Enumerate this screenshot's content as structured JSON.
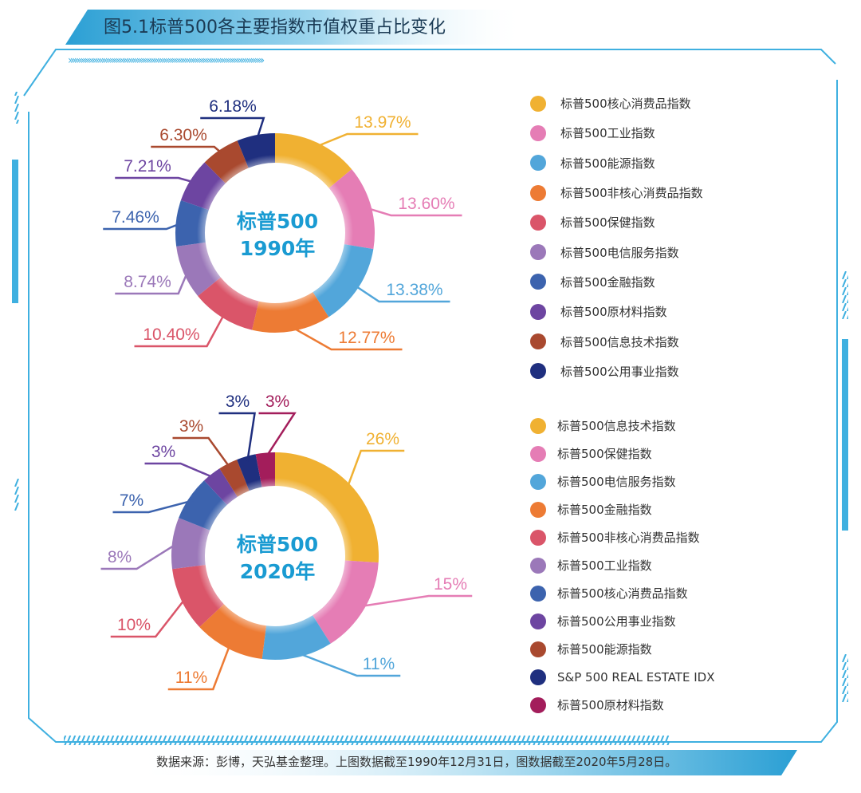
{
  "title": "图5.1标普500各主要指数市值权重占比变化",
  "source": "数据来源：彭博，天弘基金整理。上图数据截至1990年12月31日，图数据截至2020年5月28日。",
  "colors": {
    "frame": "#3fb0e0",
    "center_text": "#1a9bd2"
  },
  "chart_data": [
    {
      "type": "pie",
      "variant": "donut",
      "center_label": [
        "标普500",
        "1990年"
      ],
      "categories": [
        "标普500核心消费品指数",
        "标普500工业指数",
        "标普500能源指数",
        "标普500非核心消费品指数",
        "标普500保健指数",
        "标普500电信服务指数",
        "标普500金融指数",
        "标普500原材料指数",
        "标普500信息技术指数",
        "标普500公用事业指数"
      ],
      "values": [
        13.97,
        13.6,
        13.38,
        12.77,
        10.4,
        8.74,
        7.46,
        7.21,
        6.3,
        6.18
      ],
      "labels": [
        "13.97%",
        "13.60%",
        "13.38%",
        "12.77%",
        "10.40%",
        "8.74%",
        "7.46%",
        "7.21%",
        "6.30%",
        "6.18%"
      ],
      "colors": [
        "#f0b132",
        "#e57db5",
        "#52a6da",
        "#ed7b34",
        "#da5569",
        "#9b78b9",
        "#3c63ae",
        "#6d45a1",
        "#a9492f",
        "#1f2f7f"
      ],
      "legend_placement": "right"
    },
    {
      "type": "pie",
      "variant": "donut",
      "center_label": [
        "标普500",
        "2020年"
      ],
      "categories": [
        "标普500信息技术指数",
        "标普500保健指数",
        "标普500电信服务指数",
        "标普500金融指数",
        "标普500非核心消费品指数",
        "标普500工业指数",
        "标普500核心消费品指数",
        "标普500公用事业指数",
        "标普500能源指数",
        "S&P 500 REAL ESTATE IDX",
        "标普500原材料指数"
      ],
      "values": [
        26,
        15,
        11,
        11,
        10,
        8,
        7,
        3,
        3,
        3,
        3
      ],
      "labels": [
        "26%",
        "15%",
        "11%",
        "11%",
        "10%",
        "8%",
        "7%",
        "3%",
        "3%",
        "3%",
        "3%"
      ],
      "colors": [
        "#f0b132",
        "#e57db5",
        "#52a6da",
        "#ed7b34",
        "#da5569",
        "#9b78b9",
        "#3c63ae",
        "#6d45a1",
        "#a9492f",
        "#1f2f7f",
        "#a31d5b"
      ],
      "legend_placement": "right"
    }
  ]
}
